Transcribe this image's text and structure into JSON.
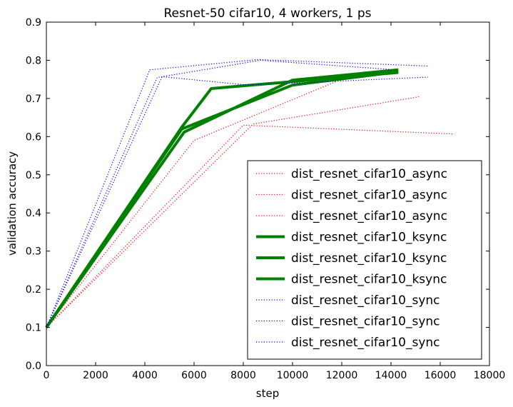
{
  "chart_data": {
    "type": "line",
    "title": "Resnet-50 cifar10, 4 workers, 1 ps",
    "xlabel": "step",
    "ylabel": "validation accuracy",
    "xlim": [
      0,
      18000
    ],
    "ylim": [
      0.0,
      0.9
    ],
    "x_ticks": [
      0,
      2000,
      4000,
      6000,
      8000,
      10000,
      12000,
      14000,
      16000,
      18000
    ],
    "y_ticks": [
      0.0,
      0.1,
      0.2,
      0.3,
      0.4,
      0.5,
      0.6,
      0.7,
      0.8,
      0.9
    ],
    "x_tick_labels": [
      "0",
      "2000",
      "4000",
      "6000",
      "8000",
      "10000",
      "12000",
      "14000",
      "16000",
      "18000"
    ],
    "y_tick_labels": [
      "0.0",
      "0.1",
      "0.2",
      "0.3",
      "0.4",
      "0.5",
      "0.6",
      "0.7",
      "0.8",
      "0.9"
    ],
    "grid": false,
    "legend_position": "bottom-right",
    "series": [
      {
        "name": "dist_resnet_cifar10_async",
        "color": "#ff0000",
        "style": "dotted",
        "points": [
          [
            0,
            0.1
          ],
          [
            8000,
            0.63
          ],
          [
            16500,
            0.607
          ]
        ]
      },
      {
        "name": "dist_resnet_cifar10_async",
        "color": "#ff0000",
        "style": "dotted",
        "points": [
          [
            0,
            0.1
          ],
          [
            8400,
            0.633
          ],
          [
            15200,
            0.705
          ]
        ]
      },
      {
        "name": "dist_resnet_cifar10_async",
        "color": "#ff0000",
        "style": "dotted",
        "points": [
          [
            0,
            0.1
          ],
          [
            6000,
            0.59
          ],
          [
            11800,
            0.745
          ]
        ]
      },
      {
        "name": "dist_resnet_cifar10_ksync",
        "color": "#008000",
        "style": "solid",
        "points": [
          [
            0,
            0.1
          ],
          [
            5500,
            0.625
          ],
          [
            6700,
            0.726
          ],
          [
            14300,
            0.768
          ]
        ]
      },
      {
        "name": "dist_resnet_cifar10_ksync",
        "color": "#008000",
        "style": "solid",
        "points": [
          [
            0,
            0.1
          ],
          [
            5600,
            0.612
          ],
          [
            10000,
            0.748
          ],
          [
            14300,
            0.775
          ]
        ]
      },
      {
        "name": "dist_resnet_cifar10_ksync",
        "color": "#008000",
        "style": "solid",
        "points": [
          [
            0,
            0.1
          ],
          [
            5500,
            0.62
          ],
          [
            10000,
            0.735
          ],
          [
            14300,
            0.77
          ]
        ]
      },
      {
        "name": "dist_resnet_cifar10_sync",
        "color": "#0000ff",
        "style": "dotted",
        "points": [
          [
            0,
            0.1
          ],
          [
            4200,
            0.775
          ],
          [
            8600,
            0.802
          ],
          [
            15500,
            0.785
          ]
        ]
      },
      {
        "name": "dist_resnet_cifar10_sync",
        "color": "#0000ff",
        "style": "dotted",
        "points": [
          [
            0,
            0.1
          ],
          [
            4700,
            0.757
          ],
          [
            8200,
            0.735
          ],
          [
            15500,
            0.756
          ]
        ]
      },
      {
        "name": "dist_resnet_cifar10_sync",
        "color": "#0000ff",
        "style": "dotted",
        "points": [
          [
            0,
            0.1
          ],
          [
            4500,
            0.755
          ],
          [
            8700,
            0.8
          ],
          [
            14000,
            0.776
          ]
        ]
      }
    ]
  }
}
